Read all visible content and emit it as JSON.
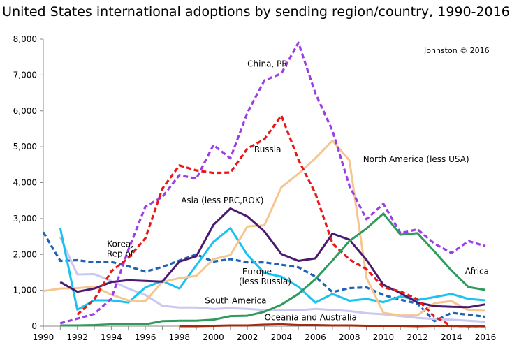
{
  "chart_data": {
    "type": "line",
    "title": "United States international adoptions by sending region/country, 1990-2016",
    "credit": "Johnston © 2016",
    "xlabel": "",
    "ylabel": "",
    "xlim": [
      1990,
      2016
    ],
    "ylim": [
      0,
      8000
    ],
    "x_ticks": [
      "1990",
      "1992",
      "1994",
      "1996",
      "1998",
      "2000",
      "2002",
      "2004",
      "2006",
      "2008",
      "2010",
      "2012",
      "2014",
      "2016"
    ],
    "y_ticks": [
      "0",
      "1,000",
      "2,000",
      "3,000",
      "4,000",
      "5,000",
      "6,000",
      "7,000",
      "8,000"
    ],
    "grid": "none",
    "legend": "none",
    "series": [
      {
        "name": "Korea, Rep of",
        "color": "#1f62b4",
        "style": "dashed",
        "x": [
          1990,
          1991,
          1992,
          1993,
          1994,
          1995,
          1996,
          1997,
          1998,
          1999,
          2000,
          2001,
          2002,
          2003,
          2004,
          2005,
          2006,
          2007,
          2008,
          2009,
          2010,
          2011,
          2012,
          2013,
          2014,
          2015,
          2016
        ],
        "values": [
          2620,
          1820,
          1840,
          1780,
          1790,
          1670,
          1520,
          1650,
          1830,
          2000,
          1800,
          1870,
          1780,
          1780,
          1710,
          1640,
          1380,
          950,
          1060,
          1080,
          870,
          740,
          630,
          140,
          370,
          320,
          260
        ]
      },
      {
        "name": "South America",
        "color": "#c8c8f0",
        "style": "solid",
        "x": [
          1991,
          1992,
          1993,
          1994,
          1995,
          1996,
          1997,
          1998,
          1999,
          2000,
          2001,
          2002,
          2003,
          2004,
          2005,
          2006,
          2007,
          2008,
          2009,
          2010,
          2011,
          2012,
          2013,
          2014,
          2015,
          2016
        ],
        "values": [
          2480,
          1440,
          1450,
          1260,
          1050,
          870,
          570,
          520,
          520,
          480,
          500,
          480,
          450,
          440,
          440,
          480,
          450,
          420,
          360,
          330,
          280,
          230,
          200,
          180,
          150,
          120
        ]
      },
      {
        "name": "Europe (less Russia)",
        "color": "#19c3f0",
        "style": "solid",
        "x": [
          1991,
          1992,
          1993,
          1994,
          1995,
          1996,
          1997,
          1998,
          1999,
          2000,
          2001,
          2002,
          2003,
          2004,
          2005,
          2006,
          2007,
          2008,
          2009,
          2010,
          2011,
          2012,
          2013,
          2014,
          2015,
          2016
        ],
        "values": [
          2730,
          460,
          720,
          720,
          660,
          1080,
          1260,
          1050,
          1700,
          2350,
          2730,
          1990,
          1480,
          1380,
          1100,
          660,
          900,
          710,
          760,
          670,
          830,
          730,
          810,
          900,
          760,
          720
        ]
      },
      {
        "name": "North America (less USA)",
        "color": "#f5c690",
        "style": "solid",
        "x": [
          1990,
          1991,
          1992,
          1993,
          1994,
          1995,
          1996,
          1997,
          1998,
          1999,
          2000,
          2001,
          2002,
          2003,
          2004,
          2005,
          2006,
          2007,
          2008,
          2009,
          2010,
          2011,
          2012,
          2013,
          2014,
          2015,
          2016
        ],
        "values": [
          980,
          1050,
          1060,
          1100,
          880,
          720,
          700,
          1230,
          1340,
          1400,
          1870,
          1980,
          2780,
          2810,
          3870,
          4250,
          4680,
          5170,
          4620,
          1350,
          370,
          300,
          300,
          640,
          700,
          440,
          430
        ]
      },
      {
        "name": "Asia (less PRC,ROK)",
        "color": "#4b1a6e",
        "style": "solid",
        "x": [
          1991,
          1992,
          1993,
          1994,
          1995,
          1996,
          1997,
          1998,
          1999,
          2000,
          2001,
          2002,
          2003,
          2004,
          2005,
          2006,
          2007,
          2008,
          2009,
          2010,
          2011,
          2012,
          2013,
          2014,
          2015,
          2016
        ],
        "values": [
          1230,
          960,
          1050,
          1230,
          1280,
          1260,
          1240,
          1800,
          1950,
          2820,
          3280,
          3060,
          2640,
          2010,
          1820,
          1890,
          2580,
          2410,
          1850,
          1150,
          920,
          660,
          560,
          540,
          530,
          610
        ]
      },
      {
        "name": "China, PR",
        "color": "#9b3ee6",
        "style": "dashed",
        "x": [
          1991,
          1992,
          1993,
          1994,
          1995,
          1996,
          1997,
          1998,
          1999,
          2000,
          2001,
          2002,
          2003,
          2004,
          2005,
          2006,
          2007,
          2008,
          2009,
          2010,
          2011,
          2012,
          2013,
          2014,
          2015,
          2016
        ],
        "values": [
          80,
          210,
          340,
          770,
          2130,
          3330,
          3600,
          4210,
          4110,
          5050,
          4680,
          5950,
          6850,
          7040,
          7900,
          6490,
          5450,
          3910,
          2980,
          3410,
          2590,
          2700,
          2300,
          2040,
          2370,
          2230
        ]
      },
      {
        "name": "Russia",
        "color": "#e81818",
        "style": "dashed",
        "x": [
          1992,
          1993,
          1994,
          1995,
          1996,
          1997,
          1998,
          1999,
          2000,
          2001,
          2002,
          2003,
          2004,
          2005,
          2006,
          2007,
          2008,
          2009,
          2010,
          2011,
          2012,
          2013,
          2014,
          2015,
          2016
        ],
        "values": [
          320,
          750,
          1530,
          1900,
          2450,
          3830,
          4480,
          4340,
          4270,
          4280,
          4950,
          5210,
          5870,
          4640,
          3700,
          2310,
          1860,
          1590,
          1080,
          970,
          750,
          260,
          10,
          0,
          0
        ]
      },
      {
        "name": "Africa",
        "color": "#2e9a5c",
        "style": "solid",
        "x": [
          1991,
          1992,
          1993,
          1994,
          1995,
          1996,
          1997,
          1998,
          1999,
          2000,
          2001,
          2002,
          2003,
          2004,
          2005,
          2006,
          2007,
          2008,
          2009,
          2010,
          2011,
          2012,
          2013,
          2014,
          2015,
          2016
        ],
        "values": [
          20,
          20,
          30,
          50,
          60,
          50,
          140,
          150,
          150,
          180,
          280,
          290,
          400,
          600,
          900,
          1310,
          1830,
          2370,
          2720,
          3140,
          2550,
          2590,
          2080,
          1550,
          1090,
          1010
        ]
      },
      {
        "name": "Oceania and Australia",
        "color": "#a52a0c",
        "style": "solid",
        "x": [
          1998,
          1999,
          2000,
          2001,
          2002,
          2003,
          2004,
          2005,
          2006,
          2007,
          2008,
          2009,
          2010,
          2011,
          2012,
          2013,
          2014,
          2015,
          2016
        ],
        "values": [
          0,
          0,
          10,
          20,
          20,
          40,
          50,
          30,
          30,
          20,
          20,
          10,
          10,
          10,
          0,
          10,
          10,
          0,
          0
        ]
      }
    ],
    "annotations": [
      {
        "text": "China, PR",
        "x": 2002.0,
        "y": 7230,
        "anchor": "start"
      },
      {
        "text": "Russia",
        "x": 2002.4,
        "y": 4850,
        "anchor": "start"
      },
      {
        "text": "North America (less USA)",
        "x": 2008.8,
        "y": 4570,
        "anchor": "start"
      },
      {
        "text": "Asia (less PRC,ROK)",
        "x": 1998.1,
        "y": 3430,
        "anchor": "start"
      },
      {
        "text": "Korea,",
        "x": 1995.3,
        "y": 2210,
        "anchor": "end"
      },
      {
        "text": "Rep of",
        "x": 1995.3,
        "y": 1940,
        "anchor": "end"
      },
      {
        "text": "Europe",
        "x": 2001.7,
        "y": 1440,
        "anchor": "start"
      },
      {
        "text": "(less Russia)",
        "x": 2001.5,
        "y": 1170,
        "anchor": "start"
      },
      {
        "text": "South America",
        "x": 1999.5,
        "y": 630,
        "anchor": "start"
      },
      {
        "text": "Oceania and Australia",
        "x": 2003.0,
        "y": 170,
        "anchor": "start"
      },
      {
        "text": "Africa",
        "x": 2014.8,
        "y": 1450,
        "anchor": "start"
      }
    ]
  }
}
